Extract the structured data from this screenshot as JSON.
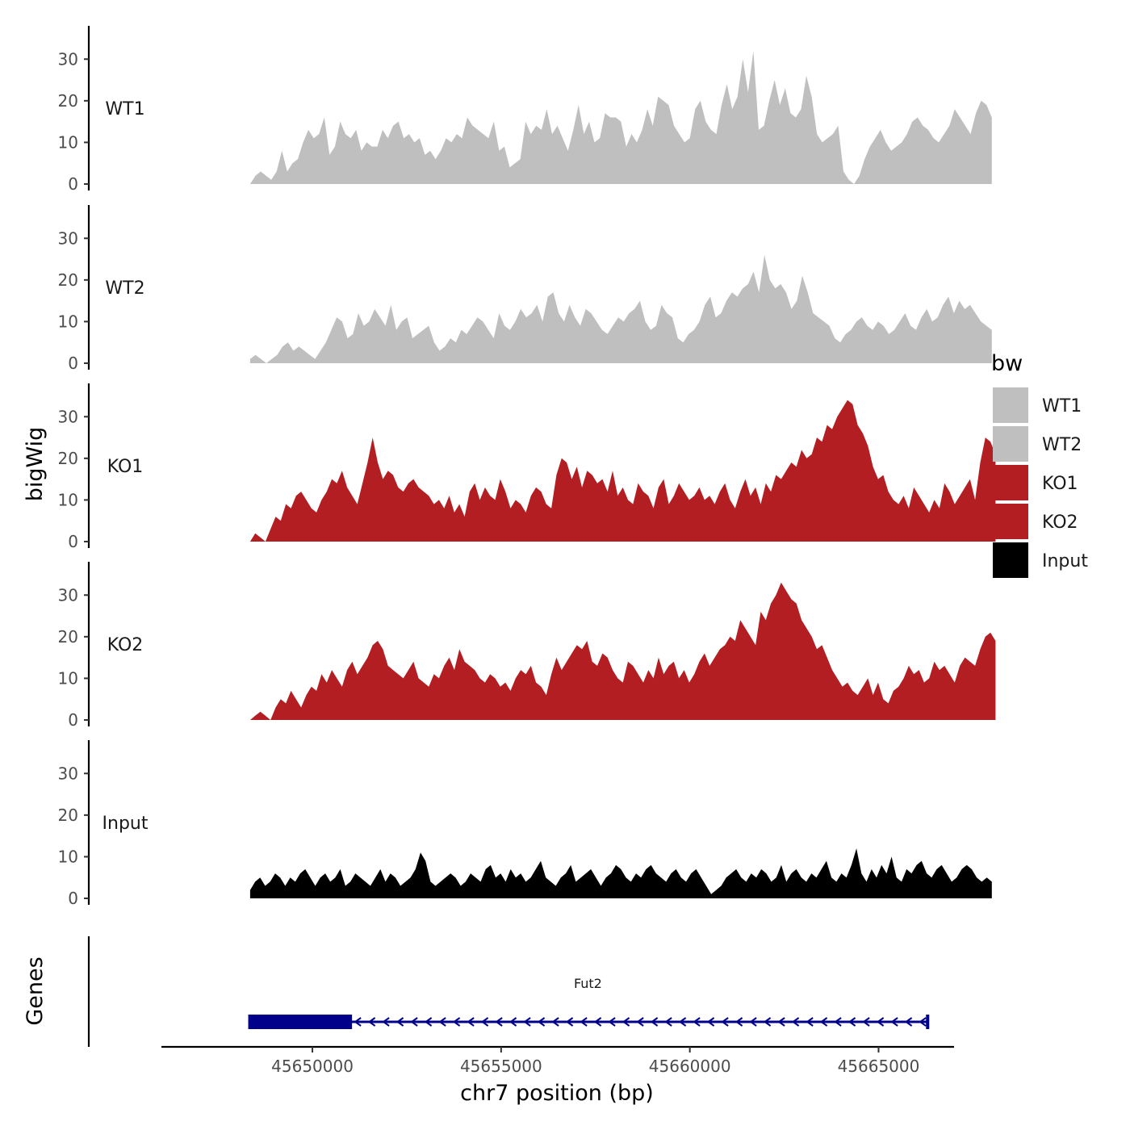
{
  "chart_data": {
    "type": "area",
    "title": "",
    "xlabel": "chr7 position (bp)",
    "ylabel": "bigWig",
    "genes_label": "Genes",
    "xlim": [
      45646000,
      45667000
    ],
    "x_ticks": [
      45650000,
      45655000,
      45660000,
      45665000
    ],
    "x_tick_labels": [
      "45650000",
      "45655000",
      "45660000",
      "45665000"
    ],
    "ylim": [
      0,
      38
    ],
    "y_ticks": [
      0,
      10,
      20,
      30
    ],
    "y_tick_labels": [
      "0",
      "10",
      "20",
      "30"
    ],
    "legend": {
      "title": "bw",
      "position": "right",
      "entries": [
        {
          "label": "WT1",
          "color": "#bfbfbf"
        },
        {
          "label": "WT2",
          "color": "#bfbfbf"
        },
        {
          "label": "KO1",
          "color": "#b21e21"
        },
        {
          "label": "KO2",
          "color": "#b21e21"
        },
        {
          "label": "Input",
          "color": "#000000"
        }
      ]
    },
    "tracks": [
      {
        "name": "WT1",
        "color": "#bfbfbf",
        "x_start": 45648350,
        "x_end": 45668000,
        "values": [
          0,
          2,
          3,
          2,
          1,
          3,
          8,
          3,
          5,
          6,
          10,
          13,
          11,
          12,
          16,
          7,
          9,
          15,
          12,
          11,
          13,
          8,
          10,
          9,
          9,
          13,
          11,
          14,
          15,
          11,
          12,
          10,
          11,
          7,
          8,
          6,
          8,
          11,
          10,
          12,
          11,
          16,
          14,
          13,
          12,
          11,
          15,
          8,
          9,
          4,
          5,
          6,
          15,
          12,
          14,
          13,
          18,
          12,
          14,
          11,
          8,
          13,
          19,
          12,
          15,
          10,
          11,
          17,
          16,
          16,
          15,
          9,
          12,
          10,
          13,
          18,
          14,
          21,
          20,
          19,
          14,
          12,
          10,
          11,
          18,
          20,
          15,
          13,
          12,
          19,
          24,
          18,
          21,
          30,
          22,
          32,
          13,
          14,
          20,
          25,
          19,
          23,
          17,
          16,
          18,
          26,
          21,
          12,
          10,
          11,
          12,
          14,
          3,
          1,
          0,
          2,
          6,
          9,
          11,
          13,
          10,
          8,
          9,
          10,
          12,
          15,
          16,
          14,
          13,
          11,
          10,
          12,
          14,
          18,
          16,
          14,
          12,
          17,
          20,
          19,
          16
        ]
      },
      {
        "name": "WT2",
        "color": "#bfbfbf",
        "x_start": 45648350,
        "x_end": 45668000,
        "values": [
          1,
          2,
          1,
          0,
          1,
          2,
          4,
          5,
          3,
          4,
          3,
          2,
          1,
          3,
          5,
          8,
          11,
          10,
          6,
          7,
          12,
          9,
          10,
          13,
          11,
          9,
          14,
          8,
          10,
          11,
          6,
          7,
          8,
          9,
          5,
          3,
          4,
          6,
          5,
          8,
          7,
          9,
          11,
          10,
          8,
          6,
          12,
          9,
          8,
          10,
          13,
          11,
          12,
          14,
          10,
          16,
          17,
          12,
          10,
          14,
          11,
          9,
          13,
          12,
          10,
          8,
          7,
          9,
          11,
          10,
          12,
          13,
          15,
          10,
          8,
          9,
          14,
          12,
          11,
          6,
          5,
          7,
          8,
          10,
          14,
          16,
          11,
          12,
          15,
          17,
          16,
          18,
          19,
          22,
          17,
          26,
          20,
          18,
          19,
          17,
          13,
          15,
          21,
          17,
          12,
          11,
          10,
          9,
          6,
          5,
          7,
          8,
          10,
          11,
          9,
          8,
          10,
          9,
          7,
          8,
          10,
          12,
          9,
          8,
          11,
          13,
          10,
          11,
          14,
          16,
          12,
          15,
          13,
          14,
          12,
          10,
          9,
          8
        ]
      },
      {
        "name": "KO1",
        "color": "#b21e21",
        "x_start": 45648350,
        "x_end": 45668100,
        "values": [
          0,
          2,
          1,
          0,
          3,
          6,
          5,
          9,
          8,
          11,
          12,
          10,
          8,
          7,
          10,
          12,
          15,
          14,
          17,
          13,
          11,
          9,
          14,
          19,
          25,
          19,
          15,
          17,
          16,
          13,
          12,
          14,
          15,
          13,
          12,
          11,
          9,
          10,
          8,
          11,
          7,
          9,
          6,
          12,
          14,
          10,
          13,
          11,
          10,
          15,
          12,
          8,
          10,
          9,
          7,
          11,
          13,
          12,
          9,
          8,
          16,
          20,
          19,
          15,
          18,
          13,
          17,
          16,
          14,
          15,
          12,
          17,
          11,
          13,
          10,
          9,
          14,
          12,
          11,
          8,
          13,
          15,
          9,
          11,
          14,
          12,
          10,
          11,
          13,
          10,
          11,
          9,
          12,
          14,
          10,
          8,
          12,
          15,
          11,
          13,
          9,
          14,
          12,
          16,
          15,
          17,
          19,
          18,
          22,
          20,
          21,
          25,
          24,
          28,
          27,
          30,
          32,
          34,
          33,
          28,
          26,
          23,
          18,
          15,
          16,
          12,
          10,
          9,
          11,
          8,
          13,
          11,
          9,
          7,
          10,
          8,
          14,
          12,
          9,
          11,
          13,
          15,
          10,
          19,
          25,
          24,
          21
        ]
      },
      {
        "name": "KO2",
        "color": "#b21e21",
        "x_start": 45648350,
        "x_end": 45668100,
        "values": [
          0,
          1,
          2,
          1,
          0,
          3,
          5,
          4,
          7,
          5,
          3,
          6,
          8,
          7,
          11,
          9,
          12,
          10,
          8,
          12,
          14,
          11,
          13,
          15,
          18,
          19,
          17,
          13,
          12,
          11,
          10,
          12,
          14,
          10,
          9,
          8,
          11,
          10,
          13,
          15,
          12,
          17,
          14,
          13,
          12,
          10,
          9,
          11,
          10,
          8,
          9,
          7,
          10,
          12,
          11,
          13,
          9,
          8,
          6,
          11,
          15,
          12,
          14,
          16,
          18,
          17,
          19,
          14,
          13,
          16,
          15,
          12,
          10,
          9,
          14,
          13,
          11,
          9,
          12,
          10,
          15,
          11,
          13,
          14,
          10,
          12,
          9,
          11,
          14,
          16,
          13,
          15,
          17,
          18,
          20,
          19,
          24,
          22,
          20,
          18,
          26,
          24,
          28,
          30,
          33,
          31,
          29,
          28,
          24,
          22,
          20,
          17,
          18,
          15,
          12,
          10,
          8,
          9,
          7,
          6,
          8,
          10,
          6,
          9,
          5,
          4,
          7,
          8,
          10,
          13,
          11,
          12,
          9,
          10,
          14,
          12,
          13,
          11,
          9,
          13,
          15,
          14,
          13,
          17,
          20,
          21,
          19
        ]
      },
      {
        "name": "Input",
        "color": "#000000",
        "x_start": 45648350,
        "x_end": 45668000,
        "values": [
          2,
          4,
          5,
          3,
          4,
          6,
          5,
          3,
          5,
          4,
          6,
          7,
          5,
          3,
          5,
          6,
          4,
          5,
          7,
          3,
          4,
          6,
          5,
          4,
          3,
          5,
          7,
          4,
          6,
          5,
          3,
          4,
          5,
          7,
          11,
          9,
          4,
          3,
          4,
          5,
          6,
          5,
          3,
          4,
          6,
          5,
          4,
          7,
          8,
          5,
          6,
          4,
          7,
          5,
          6,
          4,
          5,
          7,
          9,
          5,
          4,
          3,
          5,
          6,
          8,
          4,
          5,
          6,
          7,
          5,
          3,
          5,
          6,
          8,
          7,
          5,
          4,
          6,
          5,
          7,
          8,
          6,
          5,
          4,
          6,
          7,
          5,
          4,
          6,
          7,
          5,
          3,
          1,
          2,
          3,
          5,
          6,
          7,
          5,
          4,
          6,
          5,
          7,
          6,
          4,
          5,
          8,
          4,
          6,
          7,
          5,
          4,
          6,
          5,
          7,
          9,
          5,
          4,
          6,
          5,
          8,
          12,
          6,
          4,
          7,
          5,
          8,
          6,
          10,
          5,
          4,
          7,
          6,
          8,
          9,
          6,
          5,
          7,
          8,
          6,
          4,
          5,
          7,
          8,
          7,
          5,
          4,
          5,
          4
        ]
      }
    ],
    "gene": {
      "name": "Fut2",
      "strand": "-",
      "color": "#00008b",
      "start": 45648300,
      "thick_end": 45651050,
      "end": 45666300
    }
  }
}
